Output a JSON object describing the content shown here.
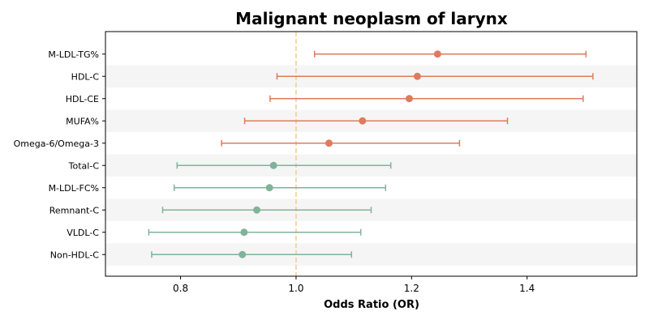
{
  "chart_data": {
    "type": "forest",
    "title": "Malignant neoplasm of larynx",
    "xlabel": "Odds Ratio (OR)",
    "ylabel": "",
    "xlim": [
      0.67,
      1.59
    ],
    "xticks": [
      0.8,
      1.0,
      1.2,
      1.4
    ],
    "reference_line": 1.0,
    "alternating_row_shading": true,
    "colors": {
      "positive": "#E07A5F",
      "negative": "#81B29A",
      "reference": "#F2CC8F",
      "shade": "#F5F5F5"
    },
    "rows": [
      {
        "label": "M-LDL-TG%",
        "or": 1.245,
        "lower": 1.032,
        "upper": 1.502,
        "group": "positive"
      },
      {
        "label": "HDL-C",
        "or": 1.21,
        "lower": 0.967,
        "upper": 1.514,
        "group": "positive"
      },
      {
        "label": "HDL-CE",
        "or": 1.196,
        "lower": 0.955,
        "upper": 1.497,
        "group": "positive"
      },
      {
        "label": "MUFA%",
        "or": 1.115,
        "lower": 0.911,
        "upper": 1.366,
        "group": "positive"
      },
      {
        "label": "Omega-6/Omega-3",
        "or": 1.057,
        "lower": 0.871,
        "upper": 1.283,
        "group": "positive"
      },
      {
        "label": "Total-C",
        "or": 0.961,
        "lower": 0.794,
        "upper": 1.164,
        "group": "negative"
      },
      {
        "label": "M-LDL-FC%",
        "or": 0.954,
        "lower": 0.789,
        "upper": 1.155,
        "group": "negative"
      },
      {
        "label": "Remnant-C",
        "or": 0.932,
        "lower": 0.769,
        "upper": 1.13,
        "group": "negative"
      },
      {
        "label": "VLDL-C",
        "or": 0.91,
        "lower": 0.745,
        "upper": 1.112,
        "group": "negative"
      },
      {
        "label": "Non-HDL-C",
        "or": 0.907,
        "lower": 0.75,
        "upper": 1.096,
        "group": "negative"
      }
    ]
  }
}
